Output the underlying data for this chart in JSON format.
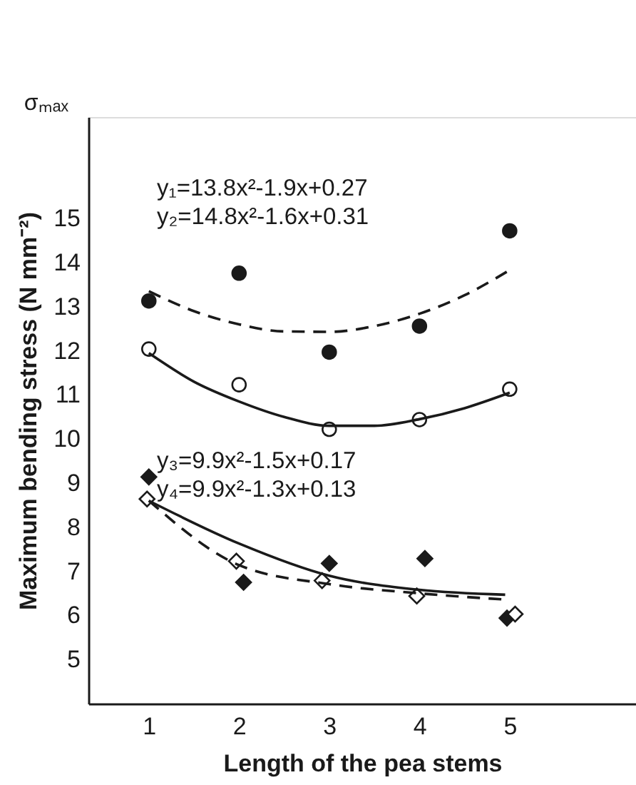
{
  "chart_data": {
    "type": "scatter",
    "xlabel": "Length of the pea stems",
    "ylabel": "Maximum bending stress (N mm⁻²)",
    "xlim": [
      0.33,
      6.4
    ],
    "ylim": [
      4,
      17.3
    ],
    "xticks": [
      1,
      2,
      3,
      4,
      5
    ],
    "yticks": [
      5,
      6,
      7,
      8,
      9,
      10,
      11,
      12,
      13,
      14,
      15
    ],
    "grid": false,
    "annotations": [
      "σₘₐₓ",
      "y₁=13.8x²-1.9x+0.27",
      "y₂=14.8x²-1.6x+0.31",
      "y₃=9.9x²-1.5x+0.17",
      "y₄=9.9x²-1.3x+0.13"
    ],
    "series": [
      {
        "marker": "circle",
        "color": "#1a1a1a",
        "x": [
          1,
          2,
          3,
          4,
          5
        ],
        "values": [
          13.13,
          13.76,
          11.97,
          12.56,
          14.72
        ]
      },
      {
        "marker": "circle",
        "color": "#ffffff",
        "x": [
          1,
          2,
          3,
          4,
          5
        ],
        "values": [
          12.04,
          11.23,
          10.22,
          10.44,
          11.13
        ]
      },
      {
        "marker": "diamond",
        "color": "#1a1a1a",
        "x": [
          1,
          2.05,
          3.0,
          4.06,
          4.97
        ],
        "values": [
          9.14,
          6.75,
          7.18,
          7.29,
          5.94
        ]
      },
      {
        "marker": "diamond",
        "color": "#ffffff",
        "x": [
          0.98,
          1.97,
          2.92,
          3.97,
          5.06
        ],
        "values": [
          8.64,
          7.23,
          6.79,
          6.44,
          6.03
        ]
      },
      {
        "type": "line",
        "line_style": "dashed",
        "color": "#1a1a1a",
        "x": [
          1,
          1.5,
          2,
          2.5,
          3,
          3.5,
          4,
          4.5,
          5
        ],
        "values": [
          13.35,
          12.9,
          12.6,
          12.44,
          12.43,
          12.56,
          12.84,
          13.26,
          13.83
        ]
      },
      {
        "type": "line",
        "line_style": "solid",
        "color": "#1a1a1a",
        "x": [
          1,
          1.5,
          2,
          2.5,
          3,
          3.5,
          4,
          4.5,
          5
        ],
        "values": [
          11.95,
          11.3,
          10.85,
          10.5,
          10.3,
          10.3,
          10.45,
          10.7,
          11.05
        ]
      },
      {
        "type": "line",
        "line_style": "solid",
        "color": "#1a1a1a",
        "x": [
          1,
          2,
          3,
          4,
          4.95
        ],
        "values": [
          8.6,
          7.63,
          6.9,
          6.58,
          6.47
        ]
      },
      {
        "type": "line",
        "line_style": "dashed",
        "color": "#1a1a1a",
        "x": [
          1,
          2,
          3,
          4,
          4.95
        ],
        "values": [
          8.6,
          7.14,
          6.71,
          6.5,
          6.36
        ]
      }
    ]
  }
}
